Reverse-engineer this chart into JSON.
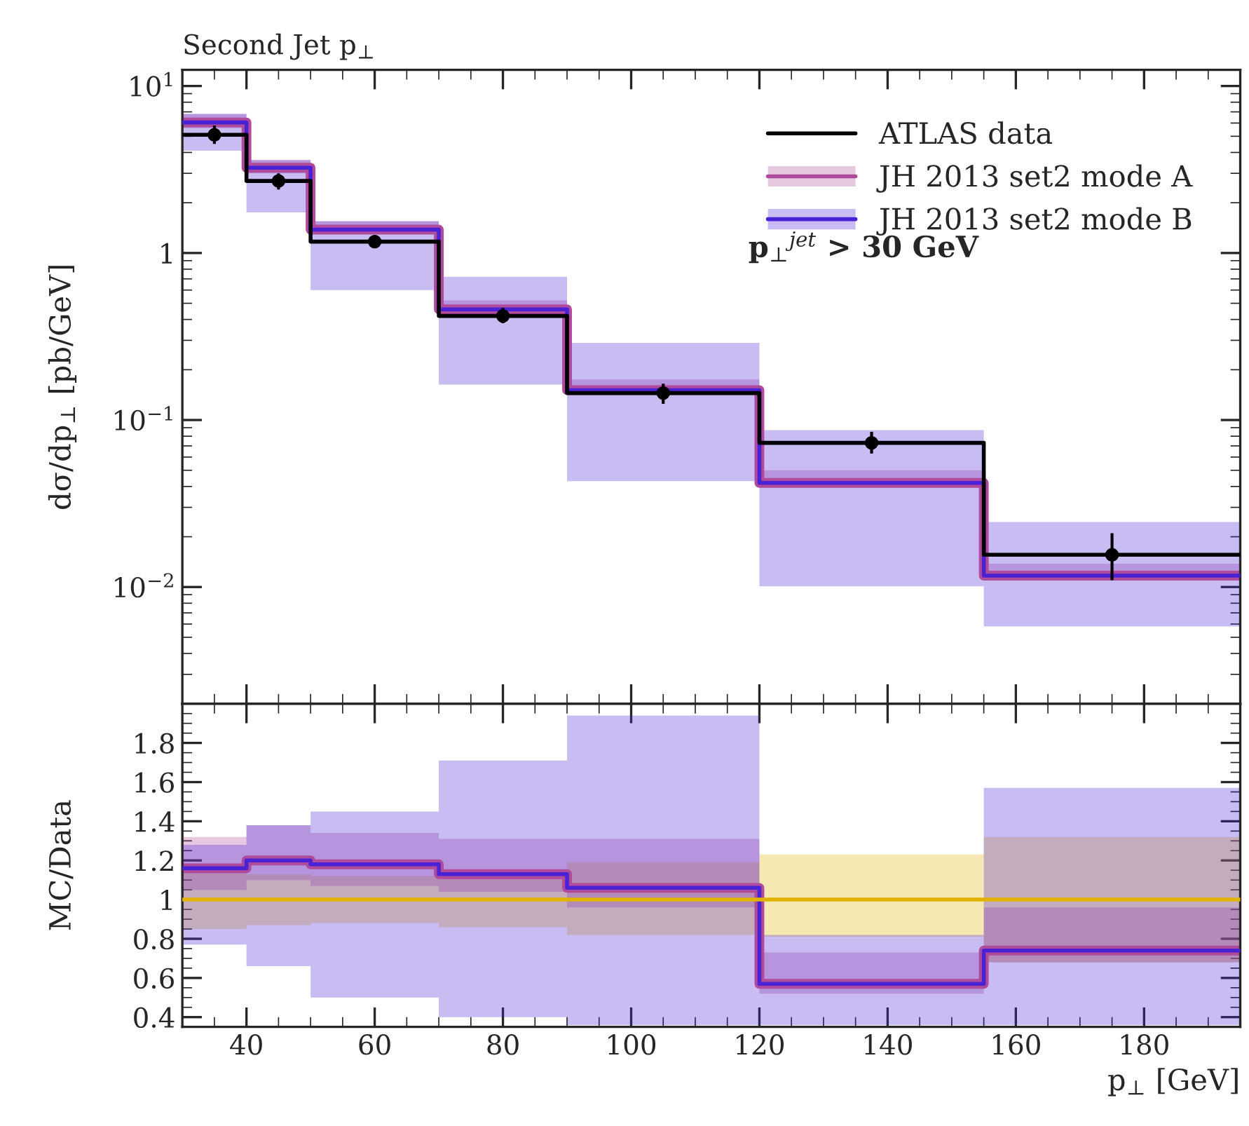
{
  "chart_data": [
    {
      "type": "step",
      "title": "Second Jet p$_{⊥}$",
      "ylabel": "dσ/dp$_{⊥}$ [pb/GeV]",
      "log": "y",
      "xlim": [
        30,
        195
      ],
      "xticks": [
        40,
        60,
        80,
        100,
        120,
        140,
        160,
        180
      ],
      "ylim": [
        0.002,
        12.5
      ],
      "yticks": [
        {
          "value": 0.01,
          "label": "10$^{−2}$"
        },
        {
          "value": 0.1,
          "label": "10$^{−1}$"
        },
        1,
        {
          "value": 10,
          "label": "10$^{1}$"
        }
      ],
      "tick_labels": "y",
      "legend": "top right",
      "grid": false,
      "annotations": [
        "p$_{⊥}$$^{jet}$ > 30 GeV"
      ],
      "series": [
        {
          "name": "ATLAS data",
          "color": "#000000",
          "x": [
            30,
            40,
            50,
            70,
            90,
            120,
            155,
            195
          ],
          "values": [
            5.1,
            2.7,
            1.17,
            0.42,
            0.145,
            0.073,
            0.0156,
            0.0156
          ]
        },
        {
          "name": "JH 2013 set2 mode A",
          "color": "#b04a9a",
          "x": [
            30,
            40,
            50,
            70,
            90,
            120,
            155,
            195
          ],
          "values": [
            6.05,
            3.24,
            1.38,
            0.46,
            0.151,
            0.042,
            0.0117,
            0.0117
          ],
          "lower": [
            5.6,
            3.0,
            1.3,
            0.44,
            0.145,
            0.04,
            0.0112,
            0.0112
          ],
          "upper": [
            6.8,
            3.6,
            1.55,
            0.52,
            0.175,
            0.05,
            0.0138,
            0.0138
          ]
        },
        {
          "name": "JH 2013 set2 mode B",
          "color": "#4a22d6",
          "x": [
            30,
            40,
            50,
            70,
            90,
            120,
            155,
            195
          ],
          "values": [
            6.05,
            3.24,
            1.38,
            0.46,
            0.151,
            0.042,
            0.0117,
            0.0117
          ],
          "lower": [
            4.1,
            1.75,
            0.6,
            0.163,
            0.043,
            0.0101,
            0.0058,
            0.0058
          ],
          "upper": [
            6.8,
            3.6,
            1.55,
            0.72,
            0.29,
            0.087,
            0.0245,
            0.0245
          ]
        },
        {
          "type": "scatter",
          "color": "#000000",
          "marker": "circle",
          "x": [
            35,
            45,
            60,
            80,
            105,
            137.5,
            175
          ],
          "values": [
            5.1,
            2.7,
            1.17,
            0.42,
            0.145,
            0.073,
            0.0156
          ],
          "errors": [
            [
              4.5,
              5.8
            ],
            [
              2.4,
              3.0
            ],
            [
              1.08,
              1.28
            ],
            [
              0.38,
              0.47
            ],
            [
              0.125,
              0.165
            ],
            [
              0.063,
              0.085
            ],
            [
              0.011,
              0.021
            ]
          ]
        }
      ]
    },
    {
      "type": "step",
      "xlabel": "p$_{⊥}$ [GeV]",
      "ylabel": "MC/Data",
      "xlim": [
        30,
        195
      ],
      "xticks": [
        40,
        60,
        80,
        100,
        120,
        140,
        160,
        180
      ],
      "ylim": [
        0.35,
        2.0
      ],
      "yticks": [
        0.4,
        0.6,
        0.8,
        1,
        1.2,
        1.4,
        1.6,
        1.8
      ],
      "legend": false,
      "grid": false,
      "series": [
        {
          "color": "#e0b400",
          "x": [
            30,
            40,
            50,
            70,
            90,
            120,
            155,
            195
          ],
          "values": [
            1,
            1,
            1,
            1,
            1,
            1,
            1,
            1
          ],
          "lower": [
            0.85,
            0.87,
            0.88,
            0.86,
            0.82,
            0.81,
            0.68,
            0.68
          ],
          "upper": [
            1.14,
            1.13,
            1.12,
            1.13,
            1.19,
            1.23,
            1.32,
            1.32
          ]
        },
        {
          "color": "#b04a9a",
          "x": [
            30,
            40,
            50,
            70,
            90,
            120,
            155,
            195
          ],
          "values": [
            1.16,
            1.2,
            1.18,
            1.13,
            1.06,
            0.57,
            0.74,
            0.74
          ],
          "lower": [
            1.05,
            1.1,
            1.07,
            1.04,
            0.96,
            0.52,
            0.68,
            0.68
          ],
          "upper": [
            1.32,
            1.38,
            1.34,
            1.31,
            1.31,
            0.73,
            0.96,
            0.96
          ]
        },
        {
          "color": "#4a22d6",
          "x": [
            30,
            40,
            50,
            70,
            90,
            120,
            155,
            195
          ],
          "values": [
            1.16,
            1.2,
            1.18,
            1.13,
            1.06,
            0.57,
            0.74,
            0.74
          ],
          "lower": [
            0.77,
            0.66,
            0.5,
            0.4,
            0.36,
            0.36,
            0.36,
            0.36
          ],
          "upper": [
            1.28,
            1.38,
            1.45,
            1.71,
            1.94,
            0.82,
            1.57,
            1.57
          ]
        }
      ]
    }
  ]
}
